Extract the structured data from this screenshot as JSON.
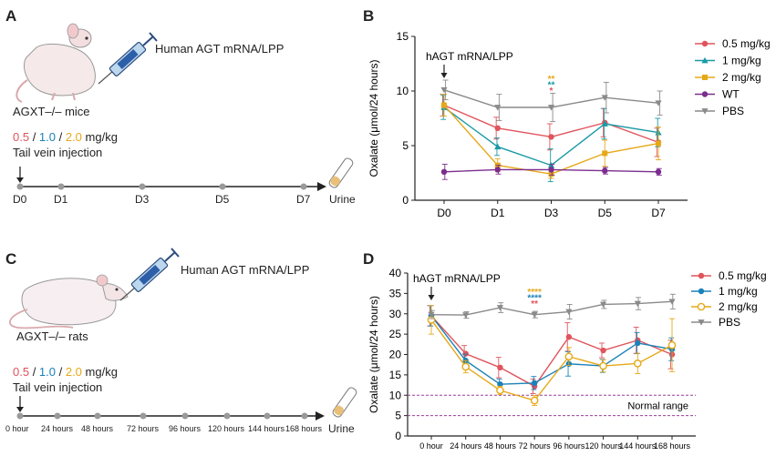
{
  "panels": {
    "a": {
      "letter": "A",
      "injection_label": "Human AGT mRNA/LPP",
      "animal_label": "AGXT–/– mice",
      "doses": [
        "0.5",
        "1.0",
        "2.0"
      ],
      "dose_separator": " / ",
      "dose_unit": " mg/kg",
      "route": "Tail vein injection",
      "timeline": [
        "D0",
        "D1",
        "D3",
        "D5",
        "D7"
      ],
      "timeline_end": "Urine"
    },
    "c": {
      "letter": "C",
      "injection_label": "Human AGT mRNA/LPP",
      "animal_label": "AGXT–/– rats",
      "doses": [
        "0.5",
        "1.0",
        "2.0"
      ],
      "dose_separator": " / ",
      "dose_unit": " mg/kg",
      "route": "Tail vein injection",
      "timeline": [
        "0 hour",
        "24 hours",
        "48 hours",
        "72 hours",
        "96 hours",
        "120 hours",
        "144 hours",
        "168 hours"
      ],
      "timeline_end": "Urine"
    },
    "b": {
      "letter": "B"
    },
    "d": {
      "letter": "D"
    }
  },
  "colors": {
    "red": "#e0545c",
    "blue": "#1a82b8",
    "teal": "#1a9aa6",
    "orange": "#e6a817",
    "purple": "#7b2d8e",
    "gray": "#8a8a8a",
    "normal_line": "#9b3c9b"
  },
  "chart_data": [
    {
      "type": "line",
      "panel": "B",
      "ylabel": "Oxalate (μmol/24 hours)",
      "categories": [
        "D0",
        "D1",
        "D3",
        "D5",
        "D7"
      ],
      "ylim": [
        0,
        15
      ],
      "yticks": [
        0,
        5,
        10,
        15
      ],
      "annotation": "hAGT mRNA/LPP",
      "annotation_at": "D0",
      "significance": {
        "at": "D3",
        "marks": [
          {
            "text": "**",
            "color": "orange"
          },
          {
            "text": "**",
            "color": "teal"
          },
          {
            "text": "*",
            "color": "red"
          }
        ]
      },
      "legend_position": "top-right",
      "series": [
        {
          "name": "0.5 mg/kg",
          "color": "red",
          "marker": "circle",
          "values": [
            8.7,
            6.6,
            5.8,
            7.1,
            5.3
          ],
          "errors": [
            1.0,
            1.0,
            1.2,
            1.3,
            1.3
          ]
        },
        {
          "name": "1 mg/kg",
          "color": "teal",
          "marker": "triangle",
          "values": [
            8.5,
            4.9,
            3.2,
            7.0,
            6.2
          ],
          "errors": [
            1.1,
            0.8,
            1.5,
            1.4,
            1.3
          ]
        },
        {
          "name": "2 mg/kg",
          "color": "orange",
          "marker": "square",
          "values": [
            8.7,
            3.2,
            2.4,
            4.3,
            5.2
          ],
          "errors": [
            1.0,
            0.6,
            0.4,
            1.2,
            1.5
          ]
        },
        {
          "name": "WT",
          "color": "purple",
          "marker": "circle",
          "values": [
            2.6,
            2.8,
            2.8,
            2.7,
            2.6
          ],
          "errors": [
            0.7,
            0.4,
            0.5,
            0.3,
            0.3
          ]
        },
        {
          "name": "PBS",
          "color": "gray",
          "marker": "triangle-down",
          "values": [
            10.1,
            8.5,
            8.5,
            9.4,
            8.9
          ],
          "errors": [
            0.9,
            1.2,
            1.3,
            1.4,
            1.1
          ]
        }
      ]
    },
    {
      "type": "line",
      "panel": "D",
      "ylabel": "Oxalate (μmol/24 hours)",
      "categories": [
        "0 hour",
        "24 hours",
        "48 hours",
        "72 hours",
        "96 hours",
        "120 hours",
        "144 hours",
        "168 hours"
      ],
      "ylim": [
        0,
        40
      ],
      "yticks": [
        0,
        5,
        10,
        15,
        20,
        25,
        30,
        35,
        40
      ],
      "annotation": "hAGT mRNA/LPP",
      "annotation_at": "0 hour",
      "significance": {
        "at": "72 hours",
        "marks": [
          {
            "text": "****",
            "color": "orange"
          },
          {
            "text": "****",
            "color": "blue"
          },
          {
            "text": "**",
            "color": "red"
          }
        ]
      },
      "normal_range": {
        "label": "Normal range",
        "low": 5,
        "high": 10
      },
      "legend_position": "top-right",
      "series": [
        {
          "name": "0.5 mg/kg",
          "color": "red",
          "marker": "circle",
          "values": [
            29.5,
            20.2,
            16.8,
            12.2,
            24.3,
            21.0,
            23.5,
            20.0
          ],
          "errors": [
            2.5,
            2.0,
            2.5,
            1.8,
            3.5,
            1.8,
            3.2,
            3.5
          ]
        },
        {
          "name": "1 mg/kg",
          "color": "blue",
          "marker": "circle",
          "values": [
            29.5,
            18.5,
            12.7,
            13.0,
            17.7,
            17.2,
            22.8,
            21.3
          ],
          "errors": [
            2.5,
            1.6,
            1.3,
            1.6,
            3.0,
            1.6,
            2.6,
            2.8
          ]
        },
        {
          "name": "2 mg/kg",
          "color": "orange",
          "marker": "circle-open",
          "values": [
            28.5,
            17.0,
            11.2,
            8.7,
            19.5,
            17.2,
            17.8,
            22.3
          ],
          "errors": [
            3.5,
            1.5,
            1.0,
            1.2,
            2.2,
            1.5,
            2.5,
            6.5
          ]
        },
        {
          "name": "PBS",
          "color": "gray",
          "marker": "triangle-down",
          "values": [
            29.8,
            29.7,
            31.5,
            29.8,
            30.5,
            32.3,
            32.5,
            33.0
          ],
          "errors": [
            1.0,
            0.8,
            1.2,
            0.8,
            1.8,
            1.0,
            1.5,
            1.8
          ]
        }
      ]
    }
  ]
}
